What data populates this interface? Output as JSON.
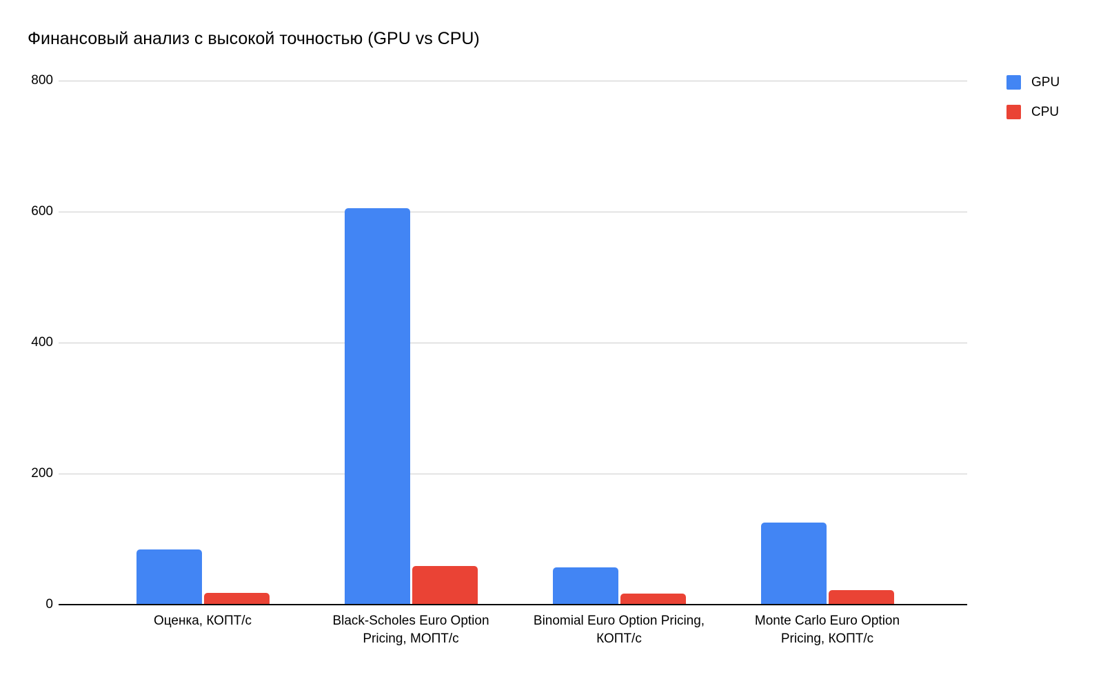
{
  "chart_data": {
    "type": "bar",
    "title": "Финансовый анализ с высокой точностью (GPU vs CPU)",
    "categories": [
      "Оценка, КОПТ/с",
      "Black-Scholes Euro Option Pricing, МОПТ/с",
      "Binomial Euro Option Pricing, КОПТ/с",
      "Monte Carlo Euro Option Pricing, КОПТ/с"
    ],
    "categories_wrapped": [
      [
        "Оценка, КОПТ/с"
      ],
      [
        "Black-Scholes Euro Option",
        "Pricing, МОПТ/с"
      ],
      [
        "Binomial Euro Option Pricing,",
        "КОПТ/с"
      ],
      [
        "Monte Carlo Euro Option",
        "Pricing, КОПТ/с"
      ]
    ],
    "series": [
      {
        "name": "GPU",
        "color": "#4285f4",
        "values": [
          84,
          605,
          57,
          125
        ]
      },
      {
        "name": "CPU",
        "color": "#ea4335",
        "values": [
          18,
          59,
          17,
          22
        ]
      }
    ],
    "xlabel": "",
    "ylabel": "",
    "ylim": [
      0,
      800
    ],
    "yticks": [
      0,
      200,
      400,
      600,
      800
    ],
    "grid": true,
    "legend": {
      "position": "top-right",
      "entries": [
        "GPU",
        "CPU"
      ]
    },
    "colors": {
      "gridline": "#cccccc",
      "axis": "#000000",
      "text": "#000000",
      "background": "#ffffff"
    }
  }
}
